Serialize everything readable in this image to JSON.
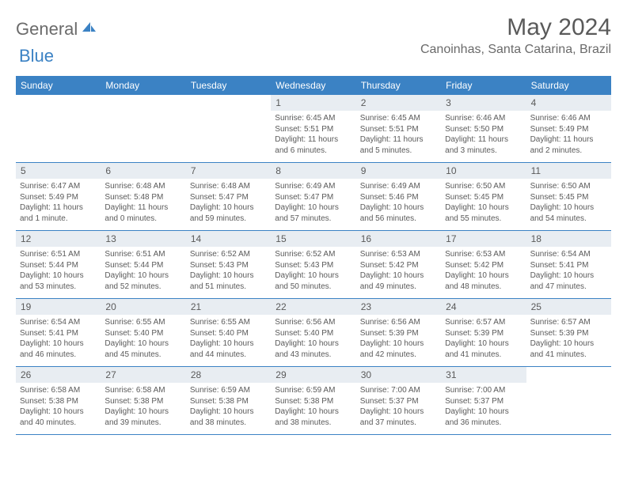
{
  "logo": {
    "textGray": "General",
    "textBlue": "Blue"
  },
  "title": "May 2024",
  "location": "Canoinhas, Santa Catarina, Brazil",
  "colors": {
    "headerBg": "#3b82c4",
    "dayNumBg": "#e8edf2",
    "text": "#5a5a5a",
    "logoBlue": "#3b82c4"
  },
  "dayNames": [
    "Sunday",
    "Monday",
    "Tuesday",
    "Wednesday",
    "Thursday",
    "Friday",
    "Saturday"
  ],
  "weeks": [
    [
      {
        "n": "",
        "sr": "",
        "ss": "",
        "dl": ""
      },
      {
        "n": "",
        "sr": "",
        "ss": "",
        "dl": ""
      },
      {
        "n": "",
        "sr": "",
        "ss": "",
        "dl": ""
      },
      {
        "n": "1",
        "sr": "6:45 AM",
        "ss": "5:51 PM",
        "dl": "11 hours and 6 minutes."
      },
      {
        "n": "2",
        "sr": "6:45 AM",
        "ss": "5:51 PM",
        "dl": "11 hours and 5 minutes."
      },
      {
        "n": "3",
        "sr": "6:46 AM",
        "ss": "5:50 PM",
        "dl": "11 hours and 3 minutes."
      },
      {
        "n": "4",
        "sr": "6:46 AM",
        "ss": "5:49 PM",
        "dl": "11 hours and 2 minutes."
      }
    ],
    [
      {
        "n": "5",
        "sr": "6:47 AM",
        "ss": "5:49 PM",
        "dl": "11 hours and 1 minute."
      },
      {
        "n": "6",
        "sr": "6:48 AM",
        "ss": "5:48 PM",
        "dl": "11 hours and 0 minutes."
      },
      {
        "n": "7",
        "sr": "6:48 AM",
        "ss": "5:47 PM",
        "dl": "10 hours and 59 minutes."
      },
      {
        "n": "8",
        "sr": "6:49 AM",
        "ss": "5:47 PM",
        "dl": "10 hours and 57 minutes."
      },
      {
        "n": "9",
        "sr": "6:49 AM",
        "ss": "5:46 PM",
        "dl": "10 hours and 56 minutes."
      },
      {
        "n": "10",
        "sr": "6:50 AM",
        "ss": "5:45 PM",
        "dl": "10 hours and 55 minutes."
      },
      {
        "n": "11",
        "sr": "6:50 AM",
        "ss": "5:45 PM",
        "dl": "10 hours and 54 minutes."
      }
    ],
    [
      {
        "n": "12",
        "sr": "6:51 AM",
        "ss": "5:44 PM",
        "dl": "10 hours and 53 minutes."
      },
      {
        "n": "13",
        "sr": "6:51 AM",
        "ss": "5:44 PM",
        "dl": "10 hours and 52 minutes."
      },
      {
        "n": "14",
        "sr": "6:52 AM",
        "ss": "5:43 PM",
        "dl": "10 hours and 51 minutes."
      },
      {
        "n": "15",
        "sr": "6:52 AM",
        "ss": "5:43 PM",
        "dl": "10 hours and 50 minutes."
      },
      {
        "n": "16",
        "sr": "6:53 AM",
        "ss": "5:42 PM",
        "dl": "10 hours and 49 minutes."
      },
      {
        "n": "17",
        "sr": "6:53 AM",
        "ss": "5:42 PM",
        "dl": "10 hours and 48 minutes."
      },
      {
        "n": "18",
        "sr": "6:54 AM",
        "ss": "5:41 PM",
        "dl": "10 hours and 47 minutes."
      }
    ],
    [
      {
        "n": "19",
        "sr": "6:54 AM",
        "ss": "5:41 PM",
        "dl": "10 hours and 46 minutes."
      },
      {
        "n": "20",
        "sr": "6:55 AM",
        "ss": "5:40 PM",
        "dl": "10 hours and 45 minutes."
      },
      {
        "n": "21",
        "sr": "6:55 AM",
        "ss": "5:40 PM",
        "dl": "10 hours and 44 minutes."
      },
      {
        "n": "22",
        "sr": "6:56 AM",
        "ss": "5:40 PM",
        "dl": "10 hours and 43 minutes."
      },
      {
        "n": "23",
        "sr": "6:56 AM",
        "ss": "5:39 PM",
        "dl": "10 hours and 42 minutes."
      },
      {
        "n": "24",
        "sr": "6:57 AM",
        "ss": "5:39 PM",
        "dl": "10 hours and 41 minutes."
      },
      {
        "n": "25",
        "sr": "6:57 AM",
        "ss": "5:39 PM",
        "dl": "10 hours and 41 minutes."
      }
    ],
    [
      {
        "n": "26",
        "sr": "6:58 AM",
        "ss": "5:38 PM",
        "dl": "10 hours and 40 minutes."
      },
      {
        "n": "27",
        "sr": "6:58 AM",
        "ss": "5:38 PM",
        "dl": "10 hours and 39 minutes."
      },
      {
        "n": "28",
        "sr": "6:59 AM",
        "ss": "5:38 PM",
        "dl": "10 hours and 38 minutes."
      },
      {
        "n": "29",
        "sr": "6:59 AM",
        "ss": "5:38 PM",
        "dl": "10 hours and 38 minutes."
      },
      {
        "n": "30",
        "sr": "7:00 AM",
        "ss": "5:37 PM",
        "dl": "10 hours and 37 minutes."
      },
      {
        "n": "31",
        "sr": "7:00 AM",
        "ss": "5:37 PM",
        "dl": "10 hours and 36 minutes."
      },
      {
        "n": "",
        "sr": "",
        "ss": "",
        "dl": ""
      }
    ]
  ],
  "labels": {
    "sunrise": "Sunrise:",
    "sunset": "Sunset:",
    "daylight": "Daylight:"
  }
}
